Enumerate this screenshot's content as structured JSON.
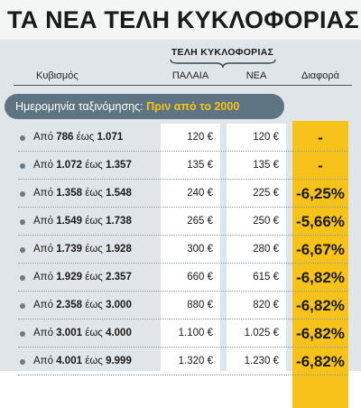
{
  "title": "ΤΑ ΝΕΑ ΤΕΛΗ ΚΥΚΛΟΦΟΡΙΑΣ",
  "group_header": "ΤΕΛΗ ΚΥΚΛΟΦΟΡΙΑΣ",
  "columns": {
    "displacement": "Κυβισμός",
    "old": "ΠΑΛΑΙΑ",
    "new": "ΝΕΑ",
    "diff": "Διαφορά"
  },
  "date_banner": {
    "label": "Ημερομηνία ταξινόμησης:",
    "value": "Πριν από το 2000"
  },
  "rows": [
    {
      "from_word": "Από",
      "from": "786",
      "to_word": "έως",
      "to": "1.071",
      "old": "120 €",
      "new": "120 €",
      "diff": "-"
    },
    {
      "from_word": "Από",
      "from": "1.072",
      "to_word": "έως",
      "to": "1.357",
      "old": "135 €",
      "new": "135 €",
      "diff": "-"
    },
    {
      "from_word": "Από",
      "from": "1.358",
      "to_word": "έως",
      "to": "1.548",
      "old": "240 €",
      "new": "225 €",
      "diff": "-6,25%"
    },
    {
      "from_word": "Από",
      "from": "1.549",
      "to_word": "έως",
      "to": "1.738",
      "old": "265 €",
      "new": "250 €",
      "diff": "-5,66%"
    },
    {
      "from_word": "Από",
      "from": "1.739",
      "to_word": "έως",
      "to": "1.928",
      "old": "300 €",
      "new": "280 €",
      "diff": "-6,67%"
    },
    {
      "from_word": "Από",
      "from": "1.929",
      "to_word": "έως",
      "to": "2.357",
      "old": "660 €",
      "new": "615 €",
      "diff": "-6,82%"
    },
    {
      "from_word": "Από",
      "from": "2.358",
      "to_word": "έως",
      "to": "3.000",
      "old": "880 €",
      "new": "820 €",
      "diff": "-6,82%"
    },
    {
      "from_word": "Από",
      "from": "3.001",
      "to_word": "έως",
      "to": "4.000",
      "old": "1.100 €",
      "new": "1.025 €",
      "diff": "-6,82%"
    },
    {
      "from_word": "Από",
      "from": "4.001",
      "to_word": "έως",
      "to": "9.999",
      "old": "1.320 €",
      "new": "1.230 €",
      "diff": "-6,82%"
    }
  ],
  "colors": {
    "accent_yellow": "#f7c21a",
    "banner_slate": "#5e7483",
    "table_bg": "#dfe5e8"
  }
}
